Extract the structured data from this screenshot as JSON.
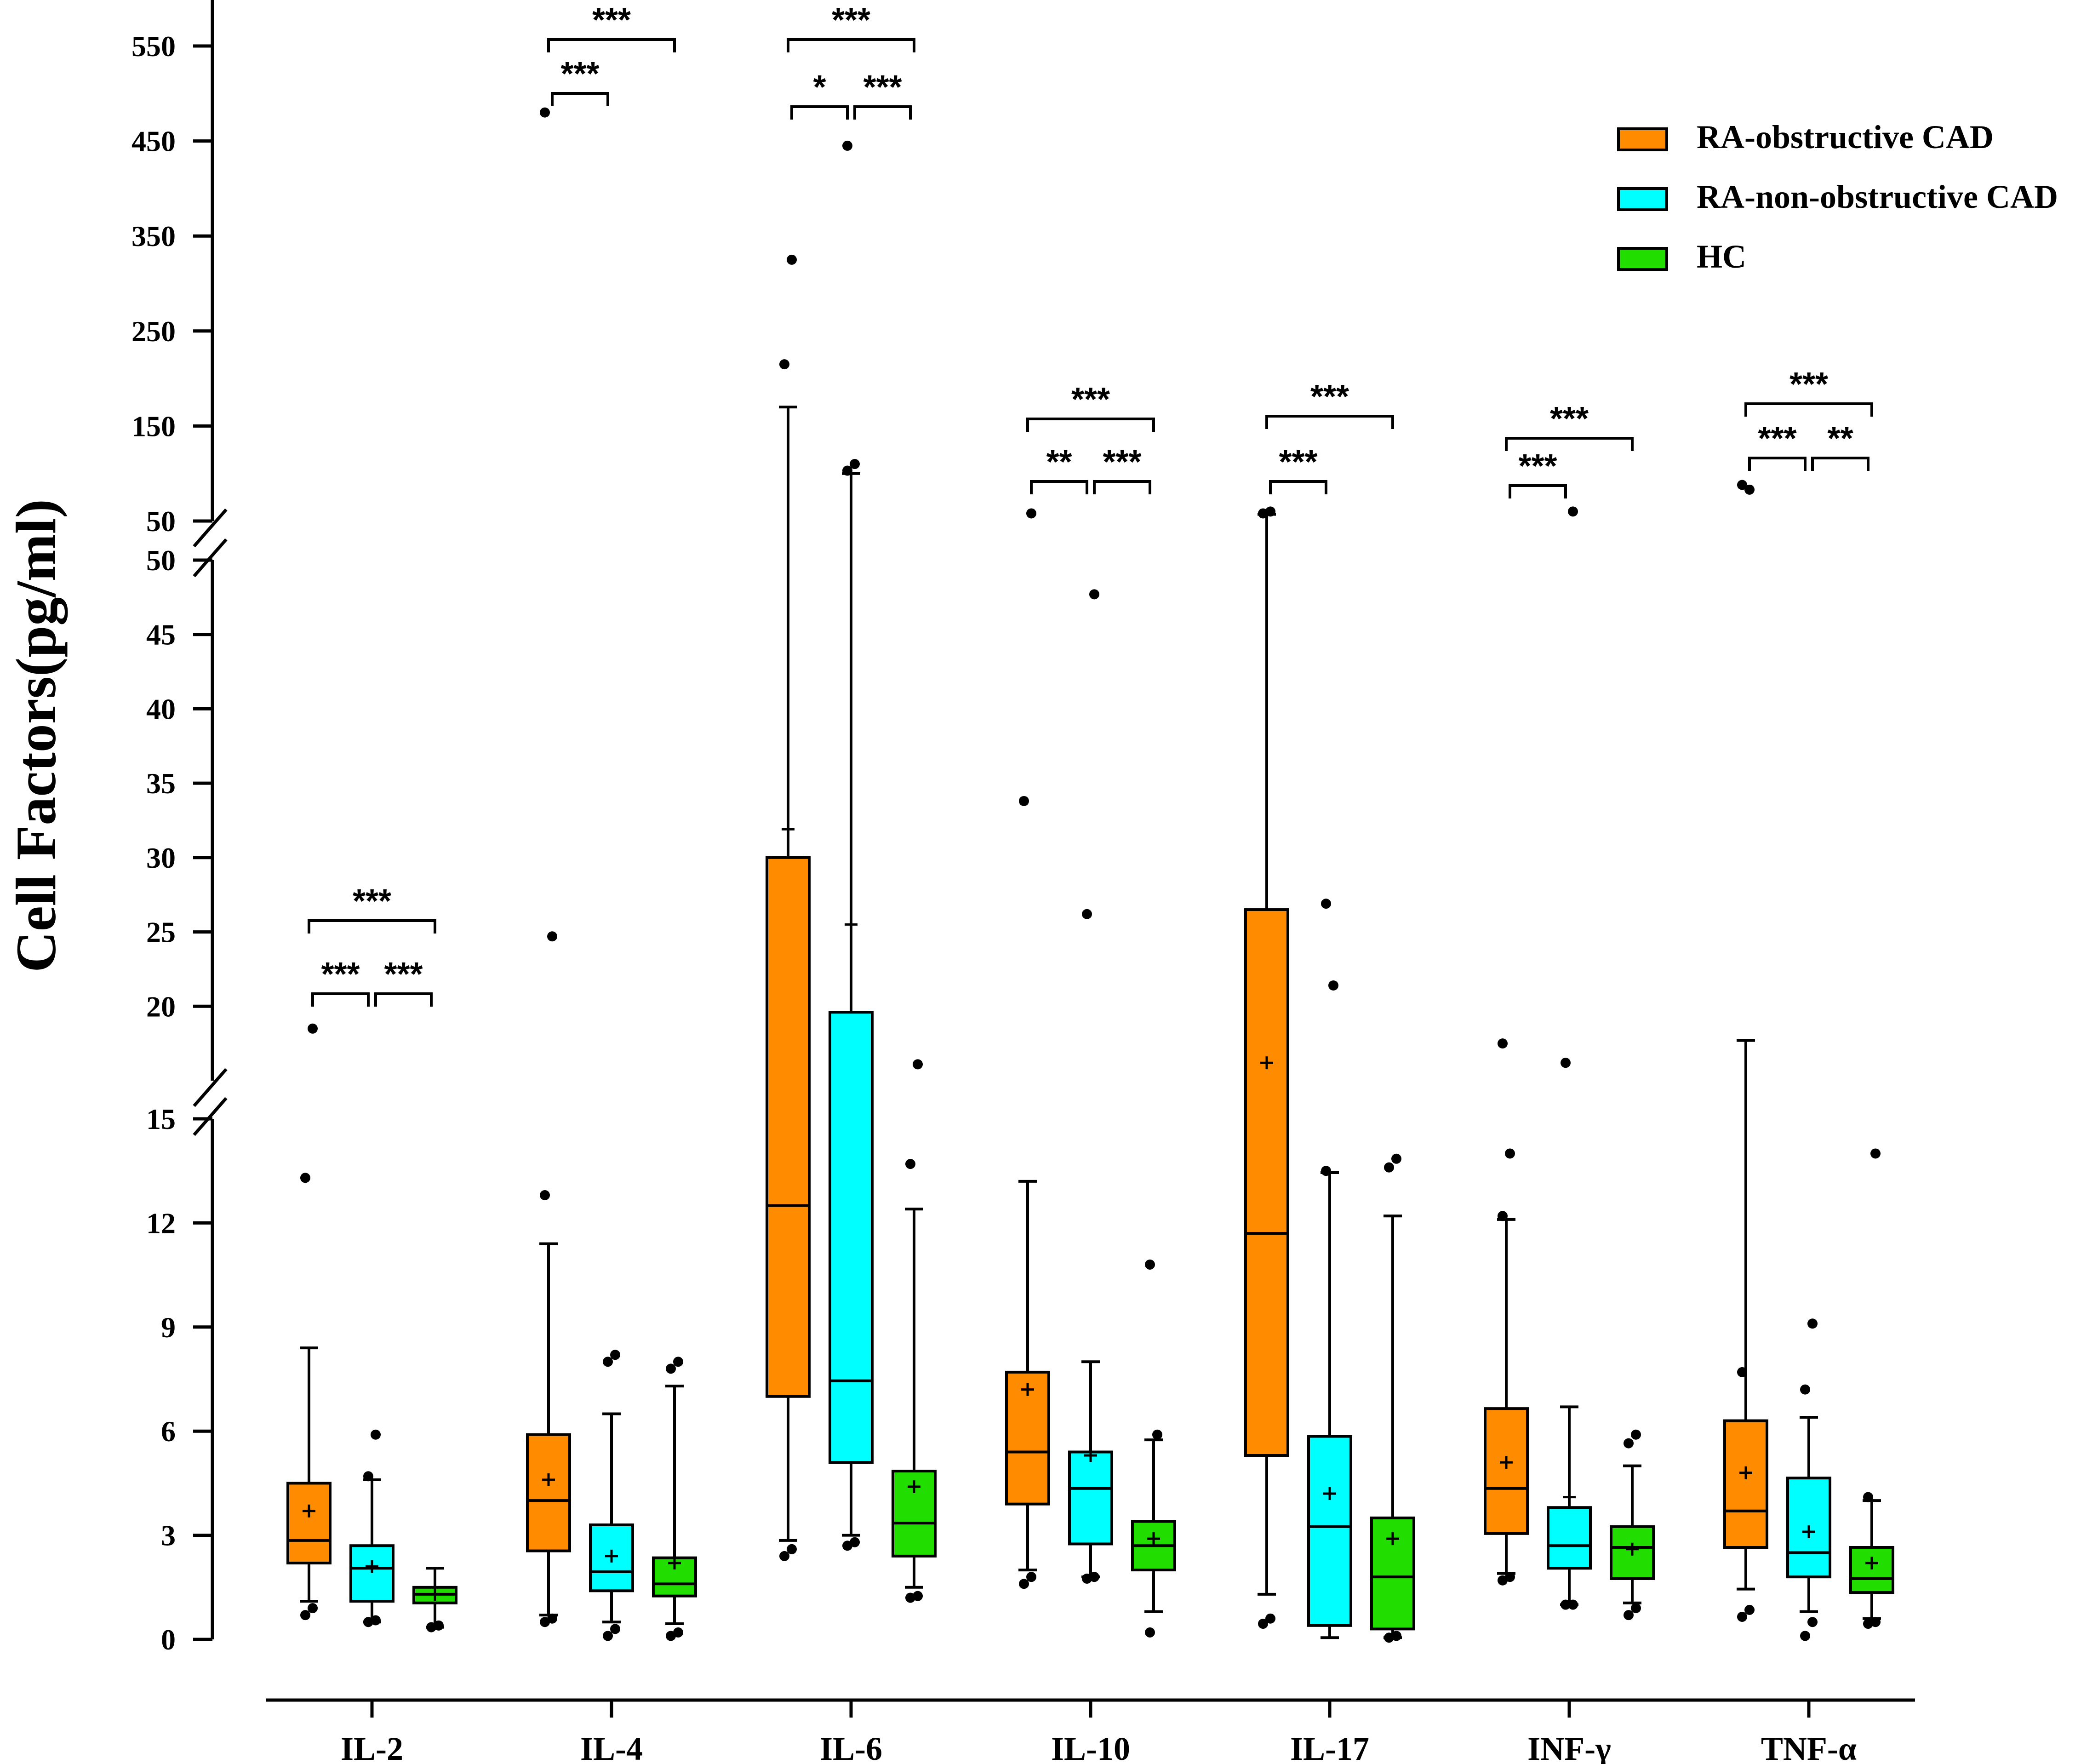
{
  "chart_data": {
    "type": "box",
    "title": "",
    "xlabel": "",
    "ylabel": "Cell Factors(pg/ml)",
    "y_axis": {
      "broken": true,
      "segments": [
        {
          "name": "lower",
          "range": [
            0,
            15
          ],
          "ticks": [
            0,
            3,
            6,
            9,
            12,
            15
          ],
          "tick_labels": [
            "0",
            "3",
            "6",
            "9",
            "12",
            "15"
          ]
        },
        {
          "name": "middle",
          "range": [
            15,
            50
          ],
          "ticks": [
            20,
            25,
            30,
            35,
            40,
            45,
            50
          ],
          "tick_labels": [
            "20",
            "25",
            "30",
            "35",
            "40",
            "45",
            "50"
          ]
        },
        {
          "name": "upper",
          "range": [
            50,
            600
          ],
          "ticks": [
            50,
            150,
            250,
            350,
            450,
            550
          ],
          "tick_labels": [
            "50",
            "150",
            "250",
            "350",
            "450",
            "550"
          ]
        }
      ]
    },
    "categories": [
      "IL-2",
      "IL-4",
      "IL-6",
      "IL-10",
      "IL-17",
      "INF-γ",
      "TNF-α"
    ],
    "legend": {
      "position": "top-right"
    },
    "series": [
      {
        "name": "RA-obstructive CAD",
        "color": "#FF8C00",
        "boxes": [
          {
            "q1": 2.2,
            "median": 2.85,
            "q3": 4.5,
            "mean": 3.7,
            "whisker_low": 1.1,
            "whisker_high": 8.4,
            "outliers": [
              0.7,
              0.9,
              13.3,
              18.5
            ]
          },
          {
            "q1": 2.55,
            "median": 4.0,
            "q3": 5.9,
            "mean": 4.6,
            "whisker_low": 0.7,
            "whisker_high": 11.4,
            "outliers": [
              0.5,
              0.6,
              12.8,
              24.7,
              480
            ]
          },
          {
            "q1": 7.0,
            "median": 12.5,
            "q3": 30,
            "mean": 31.9,
            "whisker_low": 2.85,
            "whisker_high": 170,
            "outliers": [
              2.4,
              2.6,
              215,
              325
            ]
          },
          {
            "q1": 3.9,
            "median": 5.4,
            "q3": 7.7,
            "mean": 7.2,
            "whisker_low": 2.0,
            "whisker_high": 13.2,
            "outliers": [
              1.6,
              1.8,
              33.8,
              58
            ]
          },
          {
            "q1": 5.3,
            "median": 11.7,
            "q3": 26.5,
            "mean": 16.2,
            "whisker_low": 1.3,
            "whisker_high": 57,
            "outliers": [
              0.45,
              0.6,
              58,
              60
            ]
          },
          {
            "q1": 3.05,
            "median": 4.35,
            "q3": 6.65,
            "mean": 5.1,
            "whisker_low": 1.9,
            "whisker_high": 12.1,
            "outliers": [
              1.7,
              1.8,
              12.2,
              14.0,
              17.5
            ]
          },
          {
            "q1": 2.65,
            "median": 3.7,
            "q3": 6.3,
            "mean": 4.8,
            "whisker_low": 1.45,
            "whisker_high": 17.7,
            "outliers": [
              0.65,
              0.85,
              7.7,
              83,
              88
            ]
          }
        ]
      },
      {
        "name": "RA-non-obstructive CAD",
        "color": "#00FFFF",
        "boxes": [
          {
            "q1": 1.1,
            "median": 2.05,
            "q3": 2.7,
            "mean": 2.1,
            "whisker_low": 0.5,
            "whisker_high": 4.6,
            "outliers": [
              0.5,
              0.55,
              4.7,
              5.9
            ]
          },
          {
            "q1": 1.4,
            "median": 1.95,
            "q3": 3.3,
            "mean": 2.4,
            "whisker_low": 0.5,
            "whisker_high": 6.5,
            "outliers": [
              0.1,
              0.3,
              8.0,
              8.2
            ]
          },
          {
            "q1": 5.1,
            "median": 7.45,
            "q3": 19.6,
            "mean": 25.5,
            "whisker_low": 3.0,
            "whisker_high": 100,
            "outliers": [
              2.7,
              2.8,
              103,
              110,
              445
            ]
          },
          {
            "q1": 2.75,
            "median": 4.35,
            "q3": 5.4,
            "mean": 5.3,
            "whisker_low": 1.8,
            "whisker_high": 8.0,
            "outliers": [
              1.75,
              1.8,
              26.2,
              47.7
            ]
          },
          {
            "q1": 0.4,
            "median": 3.25,
            "q3": 5.85,
            "mean": 4.2,
            "whisker_low": 0.05,
            "whisker_high": 13.45,
            "outliers": [
              13.5,
              21.4,
              26.9
            ]
          },
          {
            "q1": 2.05,
            "median": 2.7,
            "q3": 3.8,
            "mean": 4.1,
            "whisker_low": 1.0,
            "whisker_high": 6.7,
            "outliers": [
              1.0,
              1.0,
              16.2,
              60
            ]
          },
          {
            "q1": 1.8,
            "median": 2.5,
            "q3": 4.65,
            "mean": 3.1,
            "whisker_low": 0.8,
            "whisker_high": 6.4,
            "outliers": [
              0.1,
              0.5,
              7.2,
              9.1
            ]
          }
        ]
      },
      {
        "name": "HC",
        "color": "#22DD00",
        "boxes": [
          {
            "q1": 1.05,
            "median": 1.3,
            "q3": 1.5,
            "mean": 1.3,
            "whisker_low": 0.35,
            "whisker_high": 2.05,
            "outliers": [
              0.35,
              0.4
            ]
          },
          {
            "q1": 1.25,
            "median": 1.6,
            "q3": 2.35,
            "mean": 2.2,
            "whisker_low": 0.45,
            "whisker_high": 7.3,
            "outliers": [
              0.1,
              0.2,
              7.8,
              8.0
            ]
          },
          {
            "q1": 2.4,
            "median": 3.35,
            "q3": 4.85,
            "mean": 4.4,
            "whisker_low": 1.5,
            "whisker_high": 12.4,
            "outliers": [
              1.2,
              1.25,
              13.7,
              16.1
            ]
          },
          {
            "q1": 2.0,
            "median": 2.7,
            "q3": 3.4,
            "mean": 2.9,
            "whisker_low": 0.8,
            "whisker_high": 5.75,
            "outliers": [
              0.2,
              5.9,
              10.8
            ]
          },
          {
            "q1": 0.3,
            "median": 1.8,
            "q3": 3.5,
            "mean": 2.9,
            "whisker_low": 0.05,
            "whisker_high": 12.2,
            "outliers": [
              0.05,
              0.1,
              13.6,
              13.85
            ]
          },
          {
            "q1": 1.75,
            "median": 2.65,
            "q3": 3.25,
            "mean": 2.6,
            "whisker_low": 1.05,
            "whisker_high": 5.0,
            "outliers": [
              0.7,
              0.9,
              5.65,
              5.9
            ]
          },
          {
            "q1": 1.35,
            "median": 1.75,
            "q3": 2.65,
            "mean": 2.2,
            "whisker_low": 0.6,
            "whisker_high": 4.0,
            "outliers": [
              0.45,
              0.5,
              4.1,
              14.0
            ]
          }
        ]
      }
    ],
    "significance": [
      {
        "category": "IL-2",
        "comparisons": [
          {
            "from": "RA-obstructive CAD",
            "to": "RA-non-obstructive CAD",
            "label": "***"
          },
          {
            "from": "RA-non-obstructive CAD",
            "to": "HC",
            "label": "***"
          },
          {
            "from": "RA-obstructive CAD",
            "to": "HC",
            "label": "***"
          }
        ]
      },
      {
        "category": "IL-4",
        "comparisons": [
          {
            "from": "RA-obstructive CAD",
            "to": "RA-non-obstructive CAD",
            "label": "***"
          },
          {
            "from": "RA-obstructive CAD",
            "to": "HC",
            "label": "***"
          }
        ]
      },
      {
        "category": "IL-6",
        "comparisons": [
          {
            "from": "RA-obstructive CAD",
            "to": "RA-non-obstructive CAD",
            "label": "*"
          },
          {
            "from": "RA-non-obstructive CAD",
            "to": "HC",
            "label": "***"
          },
          {
            "from": "RA-obstructive CAD",
            "to": "HC",
            "label": "***"
          }
        ]
      },
      {
        "category": "IL-10",
        "comparisons": [
          {
            "from": "RA-obstructive CAD",
            "to": "RA-non-obstructive CAD",
            "label": "**"
          },
          {
            "from": "RA-non-obstructive CAD",
            "to": "HC",
            "label": "***"
          },
          {
            "from": "RA-obstructive CAD",
            "to": "HC",
            "label": "***"
          }
        ]
      },
      {
        "category": "IL-17",
        "comparisons": [
          {
            "from": "RA-obstructive CAD",
            "to": "RA-non-obstructive CAD",
            "label": "***"
          },
          {
            "from": "RA-obstructive CAD",
            "to": "HC",
            "label": "***"
          }
        ]
      },
      {
        "category": "INF-γ",
        "comparisons": [
          {
            "from": "RA-obstructive CAD",
            "to": "RA-non-obstructive CAD",
            "label": "***"
          },
          {
            "from": "RA-obstructive CAD",
            "to": "HC",
            "label": "***"
          }
        ]
      },
      {
        "category": "TNF-α",
        "comparisons": [
          {
            "from": "RA-obstructive CAD",
            "to": "RA-non-obstructive CAD",
            "label": "***"
          },
          {
            "from": "RA-non-obstructive CAD",
            "to": "HC",
            "label": "**"
          },
          {
            "from": "RA-obstructive CAD",
            "to": "HC",
            "label": "***"
          }
        ]
      }
    ]
  }
}
